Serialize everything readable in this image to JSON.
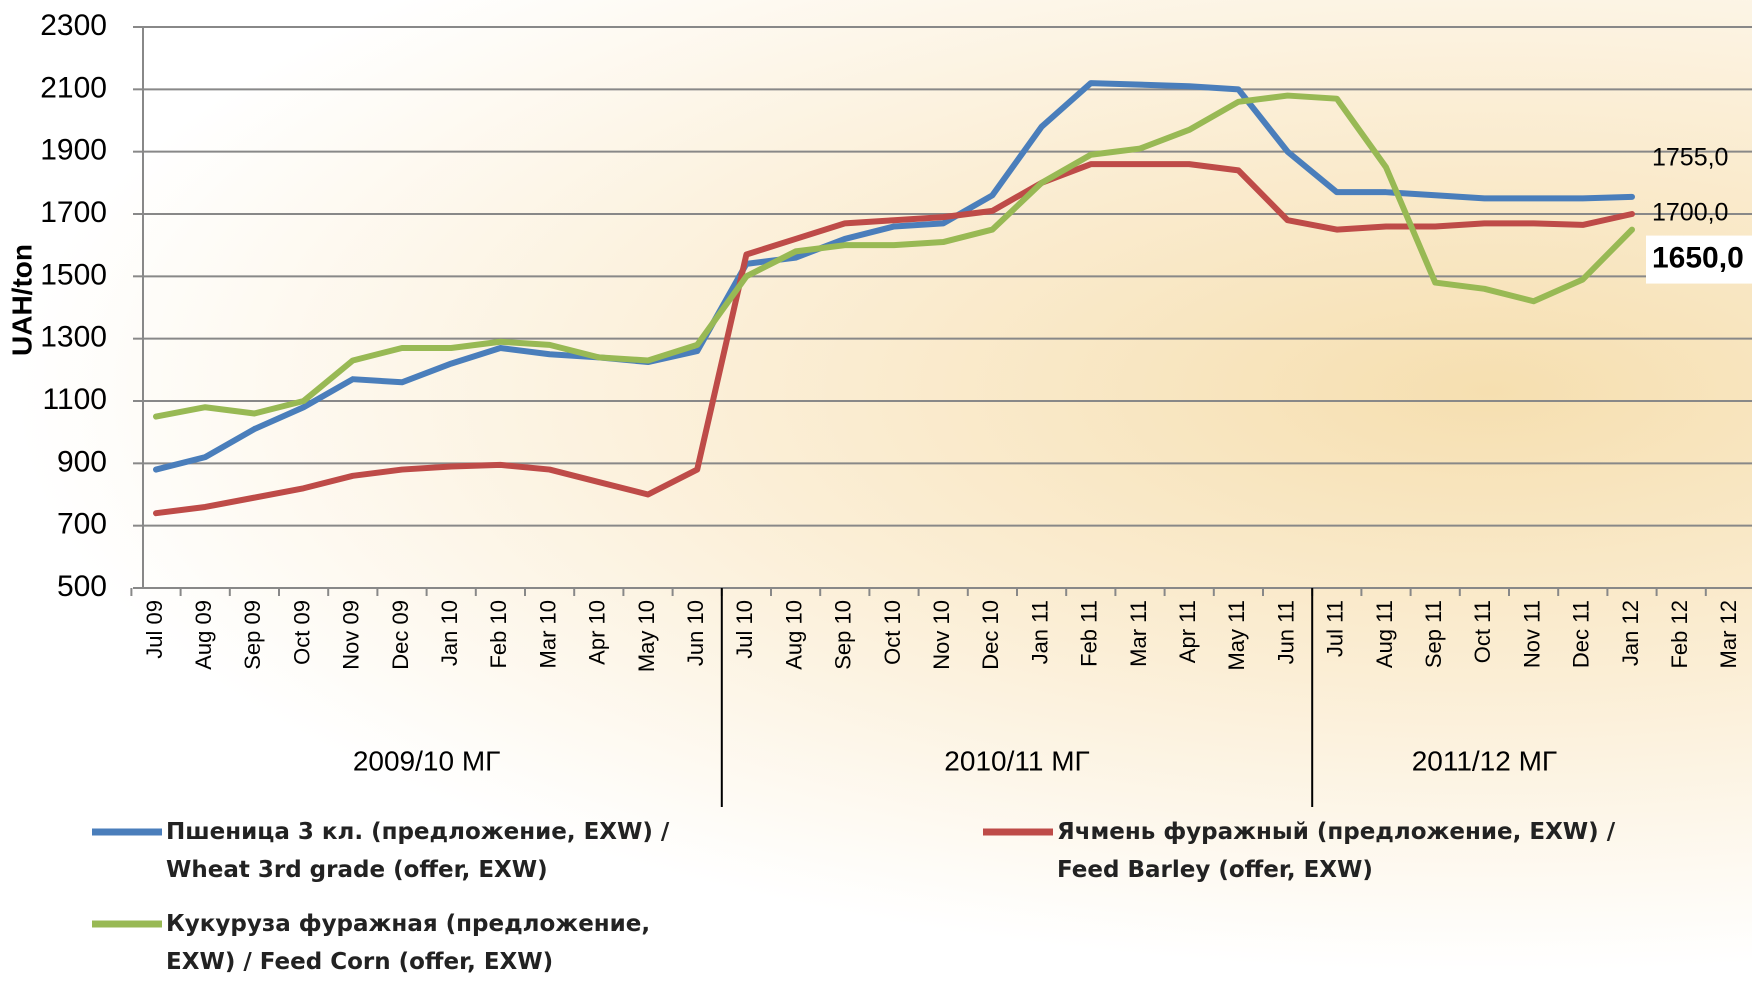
{
  "chart_data": {
    "type": "line",
    "y_label": "UAH/ton",
    "categories": [
      "Jul 09",
      "Aug 09",
      "Sep 09",
      "Oct 09",
      "Nov 09",
      "Dec 09",
      "Jan 10",
      "Feb 10",
      "Mar 10",
      "Apr 10",
      "May 10",
      "Jun 10",
      "Jul 10",
      "Aug 10",
      "Sep 10",
      "Oct 10",
      "Nov 10",
      "Dec 10",
      "Jan 11",
      "Feb 11",
      "Mar 11",
      "Apr 11",
      "May 11",
      "Jun 11",
      "Jul 11",
      "Aug 11",
      "Sep 11",
      "Oct 11",
      "Nov 11",
      "Dec 11",
      "Jan 12",
      "Feb 12",
      "Mar 12"
    ],
    "periods": [
      "2009/10 МГ",
      "2010/11 МГ",
      "2011/12 МГ"
    ],
    "ylim": [
      500,
      2300
    ],
    "yticks": [
      500,
      700,
      900,
      1100,
      1300,
      1500,
      1700,
      1900,
      2100,
      2300
    ],
    "grid": true,
    "series": [
      {
        "name": "Пшеница 3 кл. (предложение, EXW) / Wheat 3rd grade (offer, EXW)",
        "color": "#4a7ebb",
        "values": [
          880,
          920,
          1010,
          1080,
          1170,
          1160,
          1220,
          1270,
          1250,
          1240,
          1225,
          1260,
          1540,
          1560,
          1620,
          1660,
          1670,
          1760,
          1980,
          2120,
          2115,
          2110,
          2100,
          1900,
          1770,
          1770,
          1760,
          1750,
          1750,
          1750,
          1755,
          null,
          null
        ],
        "value_labels": [
          null,
          null,
          null,
          null,
          null,
          null,
          null,
          null,
          null,
          null,
          null,
          null,
          null,
          null,
          null,
          null,
          null,
          null,
          null,
          null,
          null,
          null,
          null,
          null,
          null,
          null,
          null,
          null,
          null,
          null,
          "1755,0",
          null,
          null
        ]
      },
      {
        "name": "Ячмень фуражный (предложение, EXW) / Feed Barley (offer, EXW)",
        "color": "#be4b48",
        "values": [
          740,
          760,
          790,
          820,
          860,
          880,
          890,
          895,
          880,
          840,
          800,
          880,
          1570,
          1620,
          1670,
          1680,
          1690,
          1710,
          1800,
          1860,
          1860,
          1860,
          1840,
          1680,
          1650,
          1660,
          1660,
          1670,
          1670,
          1665,
          1700,
          null,
          null
        ],
        "value_labels": [
          null,
          null,
          null,
          null,
          null,
          null,
          null,
          null,
          null,
          null,
          null,
          null,
          null,
          null,
          null,
          null,
          null,
          null,
          null,
          null,
          null,
          null,
          null,
          null,
          null,
          null,
          null,
          null,
          null,
          null,
          "1700,0",
          null,
          null
        ]
      },
      {
        "name": "Кукуруза фуражная (предложение, EXW) / Feed Corn (offer, EXW)",
        "color": "#98b954",
        "values": [
          1050,
          1080,
          1060,
          1100,
          1230,
          1270,
          1270,
          1290,
          1280,
          1240,
          1230,
          1280,
          1500,
          1580,
          1600,
          1600,
          1610,
          1650,
          1800,
          1890,
          1910,
          1970,
          2060,
          2080,
          2070,
          1850,
          1480,
          1460,
          1420,
          1490,
          1650,
          null,
          null
        ],
        "value_labels": [
          null,
          null,
          null,
          null,
          null,
          null,
          null,
          null,
          null,
          null,
          null,
          null,
          null,
          null,
          null,
          null,
          null,
          null,
          null,
          null,
          null,
          null,
          null,
          null,
          null,
          null,
          null,
          null,
          null,
          null,
          "1650,0",
          null,
          null
        ]
      }
    ]
  }
}
